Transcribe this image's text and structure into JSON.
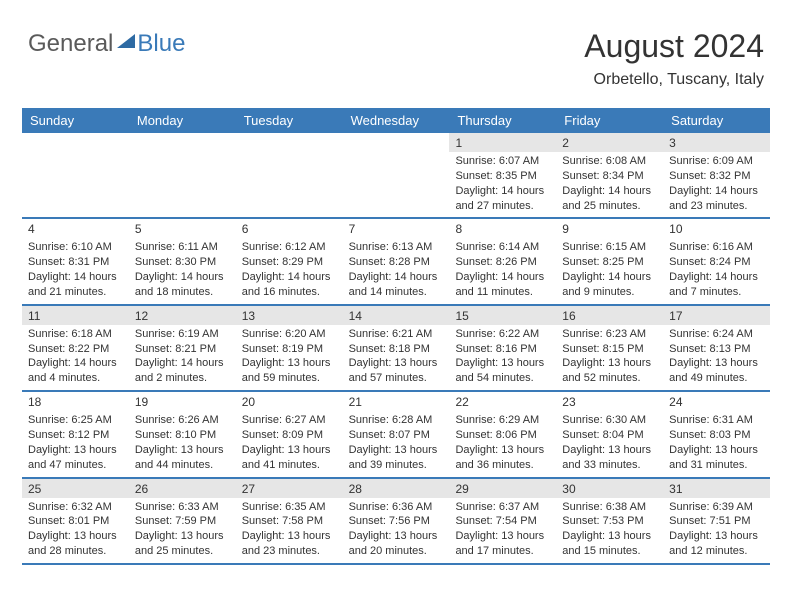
{
  "logo": {
    "general": "General",
    "blue": "Blue"
  },
  "header": {
    "month": "August 2024",
    "location": "Orbetello, Tuscany, Italy"
  },
  "style": {
    "header_bg": "#3a7ab8",
    "header_text": "#ffffff",
    "border_color": "#3a7ab8",
    "shade_bg": "#e6e6e6",
    "body_text": "#333333",
    "cell_font_size": 11,
    "header_font_size": 13
  },
  "dayNames": [
    "Sunday",
    "Monday",
    "Tuesday",
    "Wednesday",
    "Thursday",
    "Friday",
    "Saturday"
  ],
  "weeks": [
    [
      {
        "empty": true
      },
      {
        "empty": true
      },
      {
        "empty": true
      },
      {
        "empty": true
      },
      {
        "day": "1",
        "shade": true,
        "sunrise": "Sunrise: 6:07 AM",
        "sunset": "Sunset: 8:35 PM",
        "daylight": "Daylight: 14 hours and 27 minutes."
      },
      {
        "day": "2",
        "shade": true,
        "sunrise": "Sunrise: 6:08 AM",
        "sunset": "Sunset: 8:34 PM",
        "daylight": "Daylight: 14 hours and 25 minutes."
      },
      {
        "day": "3",
        "shade": true,
        "sunrise": "Sunrise: 6:09 AM",
        "sunset": "Sunset: 8:32 PM",
        "daylight": "Daylight: 14 hours and 23 minutes."
      }
    ],
    [
      {
        "day": "4",
        "sunrise": "Sunrise: 6:10 AM",
        "sunset": "Sunset: 8:31 PM",
        "daylight": "Daylight: 14 hours and 21 minutes."
      },
      {
        "day": "5",
        "sunrise": "Sunrise: 6:11 AM",
        "sunset": "Sunset: 8:30 PM",
        "daylight": "Daylight: 14 hours and 18 minutes."
      },
      {
        "day": "6",
        "sunrise": "Sunrise: 6:12 AM",
        "sunset": "Sunset: 8:29 PM",
        "daylight": "Daylight: 14 hours and 16 minutes."
      },
      {
        "day": "7",
        "sunrise": "Sunrise: 6:13 AM",
        "sunset": "Sunset: 8:28 PM",
        "daylight": "Daylight: 14 hours and 14 minutes."
      },
      {
        "day": "8",
        "sunrise": "Sunrise: 6:14 AM",
        "sunset": "Sunset: 8:26 PM",
        "daylight": "Daylight: 14 hours and 11 minutes."
      },
      {
        "day": "9",
        "sunrise": "Sunrise: 6:15 AM",
        "sunset": "Sunset: 8:25 PM",
        "daylight": "Daylight: 14 hours and 9 minutes."
      },
      {
        "day": "10",
        "sunrise": "Sunrise: 6:16 AM",
        "sunset": "Sunset: 8:24 PM",
        "daylight": "Daylight: 14 hours and 7 minutes."
      }
    ],
    [
      {
        "day": "11",
        "shade": true,
        "sunrise": "Sunrise: 6:18 AM",
        "sunset": "Sunset: 8:22 PM",
        "daylight": "Daylight: 14 hours and 4 minutes."
      },
      {
        "day": "12",
        "shade": true,
        "sunrise": "Sunrise: 6:19 AM",
        "sunset": "Sunset: 8:21 PM",
        "daylight": "Daylight: 14 hours and 2 minutes."
      },
      {
        "day": "13",
        "shade": true,
        "sunrise": "Sunrise: 6:20 AM",
        "sunset": "Sunset: 8:19 PM",
        "daylight": "Daylight: 13 hours and 59 minutes."
      },
      {
        "day": "14",
        "shade": true,
        "sunrise": "Sunrise: 6:21 AM",
        "sunset": "Sunset: 8:18 PM",
        "daylight": "Daylight: 13 hours and 57 minutes."
      },
      {
        "day": "15",
        "shade": true,
        "sunrise": "Sunrise: 6:22 AM",
        "sunset": "Sunset: 8:16 PM",
        "daylight": "Daylight: 13 hours and 54 minutes."
      },
      {
        "day": "16",
        "shade": true,
        "sunrise": "Sunrise: 6:23 AM",
        "sunset": "Sunset: 8:15 PM",
        "daylight": "Daylight: 13 hours and 52 minutes."
      },
      {
        "day": "17",
        "shade": true,
        "sunrise": "Sunrise: 6:24 AM",
        "sunset": "Sunset: 8:13 PM",
        "daylight": "Daylight: 13 hours and 49 minutes."
      }
    ],
    [
      {
        "day": "18",
        "sunrise": "Sunrise: 6:25 AM",
        "sunset": "Sunset: 8:12 PM",
        "daylight": "Daylight: 13 hours and 47 minutes."
      },
      {
        "day": "19",
        "sunrise": "Sunrise: 6:26 AM",
        "sunset": "Sunset: 8:10 PM",
        "daylight": "Daylight: 13 hours and 44 minutes."
      },
      {
        "day": "20",
        "sunrise": "Sunrise: 6:27 AM",
        "sunset": "Sunset: 8:09 PM",
        "daylight": "Daylight: 13 hours and 41 minutes."
      },
      {
        "day": "21",
        "sunrise": "Sunrise: 6:28 AM",
        "sunset": "Sunset: 8:07 PM",
        "daylight": "Daylight: 13 hours and 39 minutes."
      },
      {
        "day": "22",
        "sunrise": "Sunrise: 6:29 AM",
        "sunset": "Sunset: 8:06 PM",
        "daylight": "Daylight: 13 hours and 36 minutes."
      },
      {
        "day": "23",
        "sunrise": "Sunrise: 6:30 AM",
        "sunset": "Sunset: 8:04 PM",
        "daylight": "Daylight: 13 hours and 33 minutes."
      },
      {
        "day": "24",
        "sunrise": "Sunrise: 6:31 AM",
        "sunset": "Sunset: 8:03 PM",
        "daylight": "Daylight: 13 hours and 31 minutes."
      }
    ],
    [
      {
        "day": "25",
        "shade": true,
        "sunrise": "Sunrise: 6:32 AM",
        "sunset": "Sunset: 8:01 PM",
        "daylight": "Daylight: 13 hours and 28 minutes."
      },
      {
        "day": "26",
        "shade": true,
        "sunrise": "Sunrise: 6:33 AM",
        "sunset": "Sunset: 7:59 PM",
        "daylight": "Daylight: 13 hours and 25 minutes."
      },
      {
        "day": "27",
        "shade": true,
        "sunrise": "Sunrise: 6:35 AM",
        "sunset": "Sunset: 7:58 PM",
        "daylight": "Daylight: 13 hours and 23 minutes."
      },
      {
        "day": "28",
        "shade": true,
        "sunrise": "Sunrise: 6:36 AM",
        "sunset": "Sunset: 7:56 PM",
        "daylight": "Daylight: 13 hours and 20 minutes."
      },
      {
        "day": "29",
        "shade": true,
        "sunrise": "Sunrise: 6:37 AM",
        "sunset": "Sunset: 7:54 PM",
        "daylight": "Daylight: 13 hours and 17 minutes."
      },
      {
        "day": "30",
        "shade": true,
        "sunrise": "Sunrise: 6:38 AM",
        "sunset": "Sunset: 7:53 PM",
        "daylight": "Daylight: 13 hours and 15 minutes."
      },
      {
        "day": "31",
        "shade": true,
        "sunrise": "Sunrise: 6:39 AM",
        "sunset": "Sunset: 7:51 PM",
        "daylight": "Daylight: 13 hours and 12 minutes."
      }
    ]
  ]
}
